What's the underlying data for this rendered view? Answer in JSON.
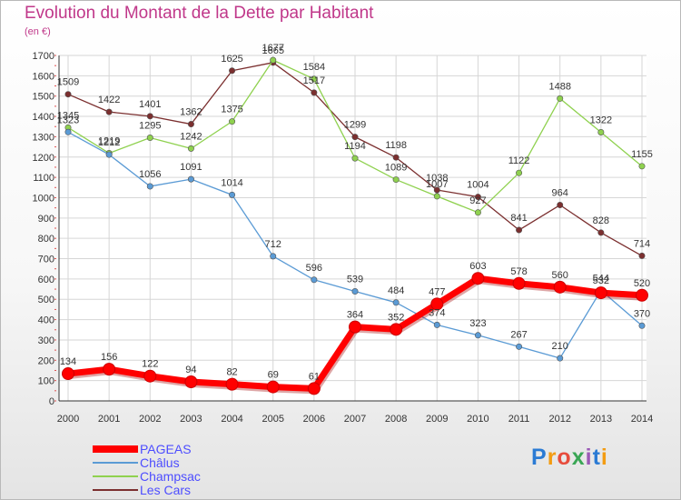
{
  "header": {
    "title": "Evolution du Montant de la Dette par Habitant",
    "unit": "(en €)"
  },
  "logo": {
    "text": "Proxiti",
    "colors": [
      "#2b7bd4",
      "#f39c12",
      "#e74c3c",
      "#3aa655",
      "#9b59b6",
      "#2b7bd4",
      "#f39c12"
    ]
  },
  "chart_data": {
    "type": "line",
    "x": [
      2000,
      2001,
      2002,
      2003,
      2004,
      2005,
      2006,
      2007,
      2008,
      2009,
      2010,
      2011,
      2012,
      2013,
      2014
    ],
    "ylim": [
      0,
      1700
    ],
    "yticks": [
      0,
      100,
      200,
      300,
      400,
      500,
      600,
      700,
      800,
      900,
      1000,
      1100,
      1200,
      1300,
      1400,
      1500,
      1600,
      1700
    ],
    "grid": true,
    "legend_position": "bottom-left",
    "series": [
      {
        "name": "PAGEAS",
        "color": "#ff0000",
        "values": [
          134,
          156,
          122,
          94,
          82,
          69,
          61,
          364,
          352,
          477,
          603,
          578,
          560,
          532,
          520
        ]
      },
      {
        "name": "Châlus",
        "color": "#5b9bd5",
        "values": [
          1323,
          1212,
          1056,
          1091,
          1014,
          712,
          596,
          539,
          484,
          374,
          323,
          267,
          210,
          544,
          370
        ]
      },
      {
        "name": "Champsac",
        "color": "#8fd14f",
        "values": [
          1345,
          1219,
          1295,
          1242,
          1375,
          1677,
          1584,
          1194,
          1089,
          1007,
          927,
          1122,
          1488,
          1322,
          1155
        ]
      },
      {
        "name": "Les Cars",
        "color": "#7b2f2f",
        "values": [
          1509,
          1422,
          1401,
          1362,
          1625,
          1665,
          1517,
          1299,
          1198,
          1038,
          1004,
          841,
          964,
          828,
          714
        ]
      }
    ]
  }
}
